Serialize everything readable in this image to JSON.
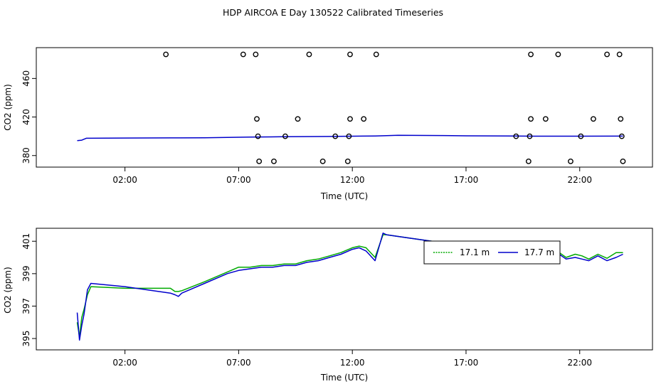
{
  "title": "HDP AIRCOA E  Day 130522  Calibrated Timeseries",
  "chart_data": [
    {
      "type": "scatter",
      "xlabel": "Time (UTC)",
      "ylabel": "CO2 (ppm)",
      "x_unit": "hours (UTC)",
      "xlim": [
        -1.9,
        25.2
      ],
      "ylim": [
        368,
        492
      ],
      "x_ticks": [
        2,
        7,
        12,
        17,
        22
      ],
      "x_tick_labels": [
        "02:00",
        "07:00",
        "12:00",
        "17:00",
        "22:00"
      ],
      "y_ticks": [
        380,
        420,
        460
      ],
      "y_tick_labels": [
        "380",
        "420",
        "460"
      ],
      "grid": false,
      "series": [
        {
          "style": "line",
          "color": "#0000cc",
          "x": [
            -0.1,
            0.1,
            0.3,
            2,
            4,
            5.5,
            7.5,
            9,
            11,
            13,
            14,
            16,
            17,
            19,
            20,
            22,
            23.9
          ],
          "y": [
            395.5,
            396,
            398,
            398.2,
            398.3,
            398.4,
            399.2,
            399.5,
            399.8,
            400.3,
            401,
            400.8,
            400.5,
            400.3,
            400.1,
            400.1,
            400.2
          ]
        },
        {
          "style": "points",
          "color": "#000000",
          "x": [
            3.8,
            7.2,
            7.75,
            10.1,
            11.9,
            13.05,
            19.85,
            21.05,
            23.2,
            23.75,
            7.8,
            9.6,
            11.9,
            12.5,
            19.85,
            20.5,
            22.6,
            23.8,
            7.85,
            9.05,
            11.25,
            11.85,
            19.2,
            19.8,
            22.05,
            23.85,
            7.9,
            8.55,
            10.7,
            11.8,
            19.75,
            21.6,
            23.9
          ],
          "y": [
            485,
            485,
            485,
            485,
            485,
            485,
            485,
            485,
            485,
            485,
            418,
            418,
            418,
            418,
            418,
            418,
            418,
            418,
            400,
            400,
            400,
            400,
            400,
            400,
            400,
            400,
            374,
            374,
            374,
            374,
            374,
            374,
            374
          ]
        }
      ]
    },
    {
      "type": "line",
      "xlabel": "Time (UTC)",
      "ylabel": "CO2 (ppm)",
      "x_unit": "hours (UTC)",
      "xlim": [
        -1.9,
        25.2
      ],
      "ylim": [
        394.3,
        401.8
      ],
      "x_ticks": [
        2,
        7,
        12,
        17,
        22
      ],
      "x_tick_labels": [
        "02:00",
        "07:00",
        "12:00",
        "17:00",
        "22:00"
      ],
      "y_ticks": [
        395,
        397,
        399,
        401
      ],
      "y_tick_labels": [
        "395",
        "397",
        "399",
        "401"
      ],
      "grid": false,
      "legend": {
        "placement": "top-right",
        "entries": [
          {
            "label": "17.1 m",
            "color": "#00aa00"
          },
          {
            "label": "17.7 m",
            "color": "#0000cc"
          }
        ]
      },
      "series": [
        {
          "name": "17.1 m",
          "color": "#00aa00",
          "x": [
            -0.1,
            0.0,
            0.1,
            0.2,
            0.35,
            0.5,
            2.0,
            4.0,
            4.2,
            4.35,
            4.5,
            5.5,
            6.5,
            7.0,
            7.5,
            8.0,
            8.5,
            9.0,
            9.5,
            10.0,
            10.5,
            11.0,
            11.5,
            12.0,
            12.3,
            12.6,
            13.0,
            13.35,
            13.5,
            14.5,
            16.0,
            17.0,
            18.0,
            18.8,
            19.1,
            19.3,
            19.6,
            19.9,
            20.2,
            20.5,
            20.8,
            21.1,
            21.4,
            21.8,
            22.1,
            22.4,
            22.8,
            23.2,
            23.6,
            23.9
          ],
          "y": [
            396.0,
            395.1,
            396.3,
            396.8,
            397.7,
            398.2,
            398.1,
            398.1,
            397.9,
            397.9,
            397.95,
            398.5,
            399.1,
            399.4,
            399.4,
            399.5,
            399.5,
            399.6,
            399.6,
            399.8,
            399.9,
            400.1,
            400.3,
            400.6,
            400.7,
            400.6,
            400.0,
            401.4,
            401.4,
            401.2,
            400.9,
            400.7,
            400.5,
            400.4,
            400.9,
            400.6,
            400.1,
            400.3,
            400.0,
            400.4,
            400.1,
            400.3,
            400.0,
            400.2,
            400.1,
            399.9,
            400.2,
            399.95,
            400.3,
            400.3
          ]
        },
        {
          "name": "17.7 m",
          "color": "#0000cc",
          "x": [
            -0.1,
            0.0,
            0.1,
            0.2,
            0.35,
            0.5,
            2.0,
            4.0,
            4.2,
            4.35,
            4.5,
            5.5,
            6.5,
            7.0,
            7.5,
            8.0,
            8.5,
            9.0,
            9.5,
            10.0,
            10.5,
            11.0,
            11.5,
            12.0,
            12.3,
            12.6,
            13.0,
            13.35,
            13.5,
            14.5,
            16.0,
            17.0,
            18.0,
            18.8,
            19.1,
            19.3,
            19.6,
            19.9,
            20.2,
            20.5,
            20.8,
            21.1,
            21.4,
            21.8,
            22.1,
            22.4,
            22.8,
            23.2,
            23.6,
            23.9
          ],
          "y": [
            396.6,
            394.9,
            395.8,
            396.5,
            398.0,
            398.4,
            398.2,
            397.8,
            397.7,
            397.6,
            397.8,
            398.4,
            399.0,
            399.2,
            399.3,
            399.4,
            399.4,
            399.5,
            399.5,
            399.7,
            399.8,
            400.0,
            400.2,
            400.5,
            400.6,
            400.4,
            399.8,
            401.5,
            401.4,
            401.2,
            400.9,
            400.7,
            400.5,
            400.3,
            400.6,
            400.4,
            399.9,
            400.1,
            399.9,
            400.2,
            399.9,
            400.2,
            399.9,
            400.0,
            399.9,
            399.8,
            400.1,
            399.8,
            400.0,
            400.2
          ]
        }
      ]
    }
  ]
}
